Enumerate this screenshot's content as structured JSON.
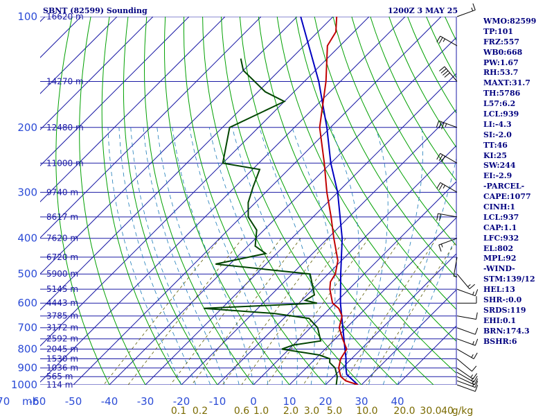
{
  "header": {
    "station": "SBNT (82599) Sounding",
    "time": "1200Z  3 MAY 25"
  },
  "colors": {
    "grid": "#1a1aa5",
    "pressure_labels": "#2b4bd6",
    "dry_adiabats": "#00a000",
    "moist_adiabats": "#1a7ab8",
    "mixing_ratio": "#5a5a00",
    "temperature": "#c00000",
    "dewpoint": "#004400",
    "parcel": "#0000c0",
    "text": "#00007f"
  },
  "chart_data": {
    "type": "skew-t",
    "x_label": "mb",
    "pressure_levels": [
      100,
      200,
      300,
      400,
      500,
      600,
      700,
      800,
      900,
      1000
    ],
    "height_labels": [
      {
        "p": 100,
        "label": "16620 m"
      },
      {
        "p": 150,
        "label": "14270 m"
      },
      {
        "p": 200,
        "label": "12480 m"
      },
      {
        "p": 250,
        "label": "11000 m"
      },
      {
        "p": 300,
        "label": "9740 m"
      },
      {
        "p": 350,
        "label": "8617 m"
      },
      {
        "p": 400,
        "label": "7620 m"
      },
      {
        "p": 450,
        "label": "6720 m"
      },
      {
        "p": 500,
        "label": "5900 m"
      },
      {
        "p": 550,
        "label": "5145 m"
      },
      {
        "p": 600,
        "label": "4443 m"
      },
      {
        "p": 650,
        "label": "3785 m"
      },
      {
        "p": 700,
        "label": "3172 m"
      },
      {
        "p": 750,
        "label": "2592 m"
      },
      {
        "p": 800,
        "label": "2045 m"
      },
      {
        "p": 850,
        "label": "1530 m"
      },
      {
        "p": 900,
        "label": "1036 m"
      },
      {
        "p": 950,
        "label": "565 m"
      },
      {
        "p": 1000,
        "label": "114 m"
      }
    ],
    "temp_ticks": [
      -80,
      -70,
      -60,
      -50,
      -40,
      -30,
      -20,
      -10,
      0,
      10,
      20,
      30,
      40
    ],
    "temp_tick_labels": [
      "-80",
      "-70",
      "-60",
      "-50",
      "-40",
      "-30",
      "-20",
      "-10",
      "0",
      "10",
      "20",
      "30",
      "40"
    ],
    "mixing_ratio_labels": [
      "0.1",
      "0.2",
      "0.6",
      "1.0",
      "2.0",
      "3.0",
      "5.0",
      "10.0",
      "20.0",
      "30.0",
      "40",
      "g/kg"
    ],
    "mixing_ratio_values": [
      0.1,
      0.2,
      0.6,
      1.0,
      2.0,
      3.0,
      5.0,
      10.0,
      20.0,
      30.0
    ],
    "temperature_profile": [
      {
        "p": 1000,
        "t": 29.0
      },
      {
        "p": 975,
        "t": 24.5
      },
      {
        "p": 950,
        "t": 22.0
      },
      {
        "p": 925,
        "t": 20.5
      },
      {
        "p": 900,
        "t": 19.0
      },
      {
        "p": 850,
        "t": 17.0
      },
      {
        "p": 825,
        "t": 16.5
      },
      {
        "p": 800,
        "t": 16.0
      },
      {
        "p": 750,
        "t": 12.0
      },
      {
        "p": 700,
        "t": 8.0
      },
      {
        "p": 650,
        "t": 5.5
      },
      {
        "p": 620,
        "t": 2.5
      },
      {
        "p": 600,
        "t": -0.7
      },
      {
        "p": 550,
        "t": -5.3
      },
      {
        "p": 525,
        "t": -7.2
      },
      {
        "p": 500,
        "t": -8.0
      },
      {
        "p": 460,
        "t": -11.0
      },
      {
        "p": 400,
        "t": -18.3
      },
      {
        "p": 350,
        "t": -25.0
      },
      {
        "p": 300,
        "t": -33.0
      },
      {
        "p": 250,
        "t": -41.8
      },
      {
        "p": 200,
        "t": -53.0
      },
      {
        "p": 150,
        "t": -64.0
      },
      {
        "p": 120,
        "t": -73.5
      },
      {
        "p": 110,
        "t": -75.0
      },
      {
        "p": 100,
        "t": -79.0
      }
    ],
    "dewpoint_profile": [
      {
        "p": 1000,
        "td": 23.0
      },
      {
        "p": 950,
        "td": 21.0
      },
      {
        "p": 900,
        "td": 18.0
      },
      {
        "p": 870,
        "td": 15.0
      },
      {
        "p": 850,
        "td": 14.0
      },
      {
        "p": 830,
        "td": 10.0
      },
      {
        "p": 800,
        "td": -2.0
      },
      {
        "p": 780,
        "td": 0.0
      },
      {
        "p": 760,
        "td": 6.5
      },
      {
        "p": 700,
        "td": 2.0
      },
      {
        "p": 660,
        "td": -3.0
      },
      {
        "p": 640,
        "td": -14.0
      },
      {
        "p": 620,
        "td": -35.0
      },
      {
        "p": 610,
        "td": -20.0
      },
      {
        "p": 600,
        "td": -5.0
      },
      {
        "p": 590,
        "td": -9.0
      },
      {
        "p": 570,
        "td": -8.0
      },
      {
        "p": 500,
        "td": -15.0
      },
      {
        "p": 470,
        "td": -44.0
      },
      {
        "p": 440,
        "td": -33.0
      },
      {
        "p": 420,
        "td": -38.0
      },
      {
        "p": 380,
        "td": -42.0
      },
      {
        "p": 350,
        "td": -48.0
      },
      {
        "p": 320,
        "td": -52.0
      },
      {
        "p": 290,
        "td": -55.0
      },
      {
        "p": 260,
        "td": -58.0
      },
      {
        "p": 250,
        "td": -70.0
      },
      {
        "p": 200,
        "td": -78.0
      },
      {
        "p": 170,
        "td": -70.0
      },
      {
        "p": 160,
        "td": -78.0
      },
      {
        "p": 140,
        "td": -90.0
      },
      {
        "p": 130,
        "td": -94.0
      }
    ],
    "parcel_profile": [
      {
        "p": 1000,
        "t": 29.0
      },
      {
        "p": 937,
        "t": 23.0
      },
      {
        "p": 900,
        "t": 21.0
      },
      {
        "p": 850,
        "t": 18.5
      },
      {
        "p": 800,
        "t": 15.5
      },
      {
        "p": 700,
        "t": 9.0
      },
      {
        "p": 600,
        "t": 1.5
      },
      {
        "p": 500,
        "t": -6.5
      },
      {
        "p": 400,
        "t": -16.0
      },
      {
        "p": 300,
        "t": -30.0
      },
      {
        "p": 250,
        "t": -40.0
      },
      {
        "p": 200,
        "t": -51.0
      },
      {
        "p": 150,
        "t": -66.0
      },
      {
        "p": 100,
        "t": -89.0
      }
    ],
    "wind_barbs": [
      {
        "p": 1000,
        "dir": 110,
        "spd": 10
      },
      {
        "p": 975,
        "dir": 110,
        "spd": 15
      },
      {
        "p": 950,
        "dir": 115,
        "spd": 15
      },
      {
        "p": 925,
        "dir": 120,
        "spd": 15
      },
      {
        "p": 900,
        "dir": 125,
        "spd": 15
      },
      {
        "p": 850,
        "dir": 130,
        "spd": 10
      },
      {
        "p": 800,
        "dir": 120,
        "spd": 15
      },
      {
        "p": 750,
        "dir": 110,
        "spd": 15
      },
      {
        "p": 700,
        "dir": 110,
        "spd": 10
      },
      {
        "p": 650,
        "dir": 100,
        "spd": 10
      },
      {
        "p": 600,
        "dir": 90,
        "spd": 10
      },
      {
        "p": 550,
        "dir": 110,
        "spd": 15
      },
      {
        "p": 500,
        "dir": 140,
        "spd": 15
      },
      {
        "p": 450,
        "dir": 190,
        "spd": 5
      },
      {
        "p": 400,
        "dir": 250,
        "spd": 15
      },
      {
        "p": 350,
        "dir": 280,
        "spd": 20
      },
      {
        "p": 300,
        "dir": 300,
        "spd": 25
      },
      {
        "p": 250,
        "dir": 300,
        "spd": 30
      },
      {
        "p": 200,
        "dir": 290,
        "spd": 35
      },
      {
        "p": 150,
        "dir": 320,
        "spd": 40
      },
      {
        "p": 120,
        "dir": 300,
        "spd": 25
      },
      {
        "p": 100,
        "dir": 70,
        "spd": 15
      }
    ]
  },
  "indices": [
    "WMO:82599",
    "TP:101",
    "FRZ:557",
    "WB0:668",
    "PW:1.67",
    "RH:53.7",
    "MAXT:31.7",
    "TH:5786",
    "L57:6.2",
    "LCL:939",
    "LI:-4.3",
    "SI:-2.0",
    "TT:46",
    "KI:25",
    "SW:244",
    "EI:-2.9",
    "-PARCEL-",
    "CAPE:1077",
    "CINH:1",
    "LCL:937",
    "CAP:1.1",
    "LFC:932",
    "EL:802",
    "MPL:92",
    "-WIND-",
    "STM:139/12",
    "HEL:13",
    "SHR-:0.0",
    "SRDS:119",
    "EHI:0.1",
    "BRN:174.3",
    "BSHR:6"
  ]
}
